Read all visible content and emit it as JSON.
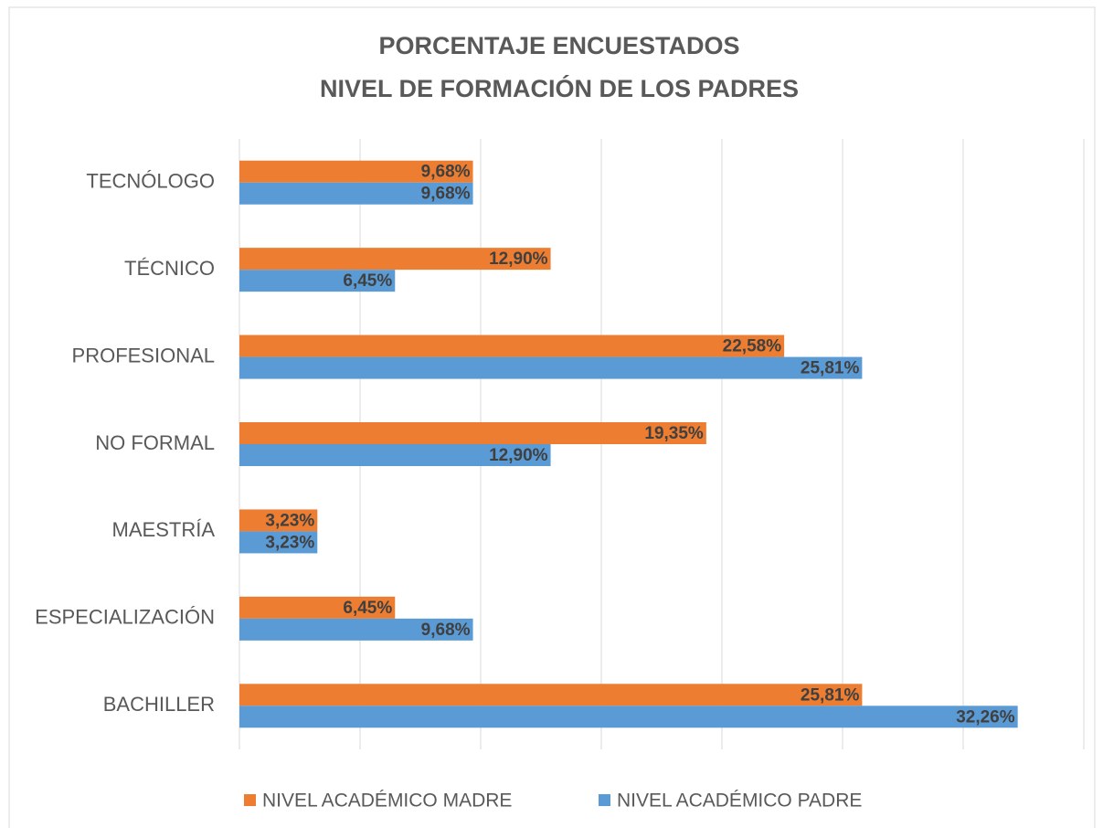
{
  "chart_data": {
    "type": "hbar",
    "title": [
      "PORCENTAJE ENCUESTADOS",
      "NIVEL DE FORMACIÓN DE LOS PADRES"
    ],
    "categories": [
      "TECNÓLOGO",
      "TÉCNICO",
      "PROFESIONAL",
      "NO FORMAL",
      "MAESTRÍA",
      "ESPECIALIZACIÓN",
      "BACHILLER"
    ],
    "series": [
      {
        "name": "NIVEL ACADÉMICO MADRE",
        "color": "#ed7d31",
        "values": [
          9.68,
          12.9,
          22.58,
          19.35,
          3.23,
          6.45,
          25.81
        ],
        "value_labels": [
          "9,68%",
          "12,90%",
          "22,58%",
          "19,35%",
          "3,23%",
          "6,45%",
          "25,81%"
        ]
      },
      {
        "name": "NIVEL ACADÉMICO PADRE",
        "color": "#5b9bd5",
        "values": [
          9.68,
          6.45,
          25.81,
          12.9,
          3.23,
          9.68,
          32.26
        ],
        "value_labels": [
          "9,68%",
          "6,45%",
          "25,81%",
          "12,90%",
          "3,23%",
          "9,68%",
          "32,26%"
        ]
      }
    ],
    "xlim": [
      0,
      35
    ],
    "xticks": [
      0,
      5,
      10,
      15,
      20,
      25,
      30,
      35
    ],
    "grid": true,
    "legend": "bottom"
  }
}
